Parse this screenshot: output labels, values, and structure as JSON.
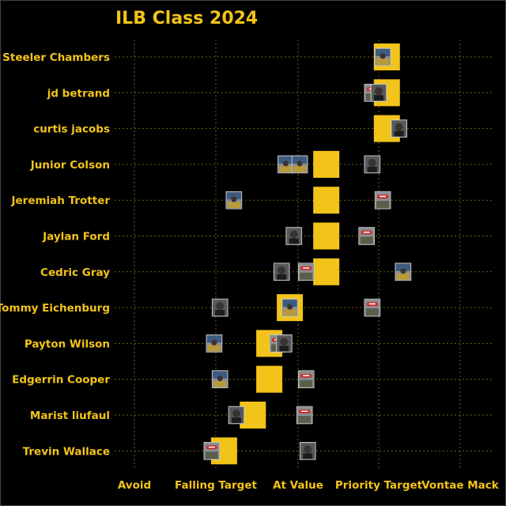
{
  "chart_data": {
    "type": "scatter",
    "title": "ILB Class 2024",
    "x_categories": [
      "Avoid",
      "Falling Target",
      "At Value",
      "Priority Target",
      "Vontae Mack"
    ],
    "xlim": [
      0,
      4
    ],
    "players": [
      {
        "name": "Steeler Chambers",
        "consensus": 3.1,
        "picks": [
          {
            "x": 3.05,
            "icon": "sky"
          }
        ]
      },
      {
        "name": "jd betrand",
        "consensus": 3.1,
        "picks": [
          {
            "x": 2.92,
            "icon": "cap"
          },
          {
            "x": 3.0,
            "icon": "head"
          }
        ]
      },
      {
        "name": "curtis jacobs",
        "consensus": 3.1,
        "picks": [
          {
            "x": 3.25,
            "icon": "head"
          }
        ]
      },
      {
        "name": "Junior Colson",
        "consensus": 2.35,
        "picks": [
          {
            "x": 1.85,
            "icon": "sky"
          },
          {
            "x": 2.02,
            "icon": "sky"
          },
          {
            "x": 2.92,
            "icon": "head"
          }
        ]
      },
      {
        "name": "Jeremiah Trotter",
        "consensus": 2.35,
        "picks": [
          {
            "x": 1.22,
            "icon": "sky"
          },
          {
            "x": 3.05,
            "icon": "cap"
          }
        ]
      },
      {
        "name": "Jaylan Ford",
        "consensus": 2.35,
        "picks": [
          {
            "x": 1.95,
            "icon": "head"
          },
          {
            "x": 2.85,
            "icon": "cap"
          }
        ]
      },
      {
        "name": "Cedric Gray",
        "consensus": 2.35,
        "picks": [
          {
            "x": 1.8,
            "icon": "head"
          },
          {
            "x": 2.1,
            "icon": "cap"
          },
          {
            "x": 3.3,
            "icon": "sky"
          }
        ]
      },
      {
        "name": "Tommy Eichenburg",
        "consensus": 1.9,
        "picks": [
          {
            "x": 1.05,
            "icon": "head"
          },
          {
            "x": 1.9,
            "icon": "sky"
          },
          {
            "x": 2.92,
            "icon": "cap"
          }
        ]
      },
      {
        "name": "Payton Wilson",
        "consensus": 1.65,
        "picks": [
          {
            "x": 0.98,
            "icon": "sky"
          },
          {
            "x": 1.75,
            "icon": "cap"
          },
          {
            "x": 1.83,
            "icon": "head"
          }
        ]
      },
      {
        "name": "Edgerrin Cooper",
        "consensus": 1.65,
        "picks": [
          {
            "x": 1.05,
            "icon": "sky"
          },
          {
            "x": 2.1,
            "icon": "cap"
          }
        ]
      },
      {
        "name": "Marist liufaul",
        "consensus": 1.45,
        "picks": [
          {
            "x": 1.25,
            "icon": "head"
          },
          {
            "x": 2.08,
            "icon": "cap"
          }
        ]
      },
      {
        "name": "Trevin Wallace",
        "consensus": 1.1,
        "picks": [
          {
            "x": 0.95,
            "icon": "cap"
          },
          {
            "x": 2.12,
            "icon": "head"
          }
        ]
      }
    ],
    "grid": true,
    "marker_colors": {
      "consensus": "#f2c419",
      "background": "#000000"
    }
  }
}
